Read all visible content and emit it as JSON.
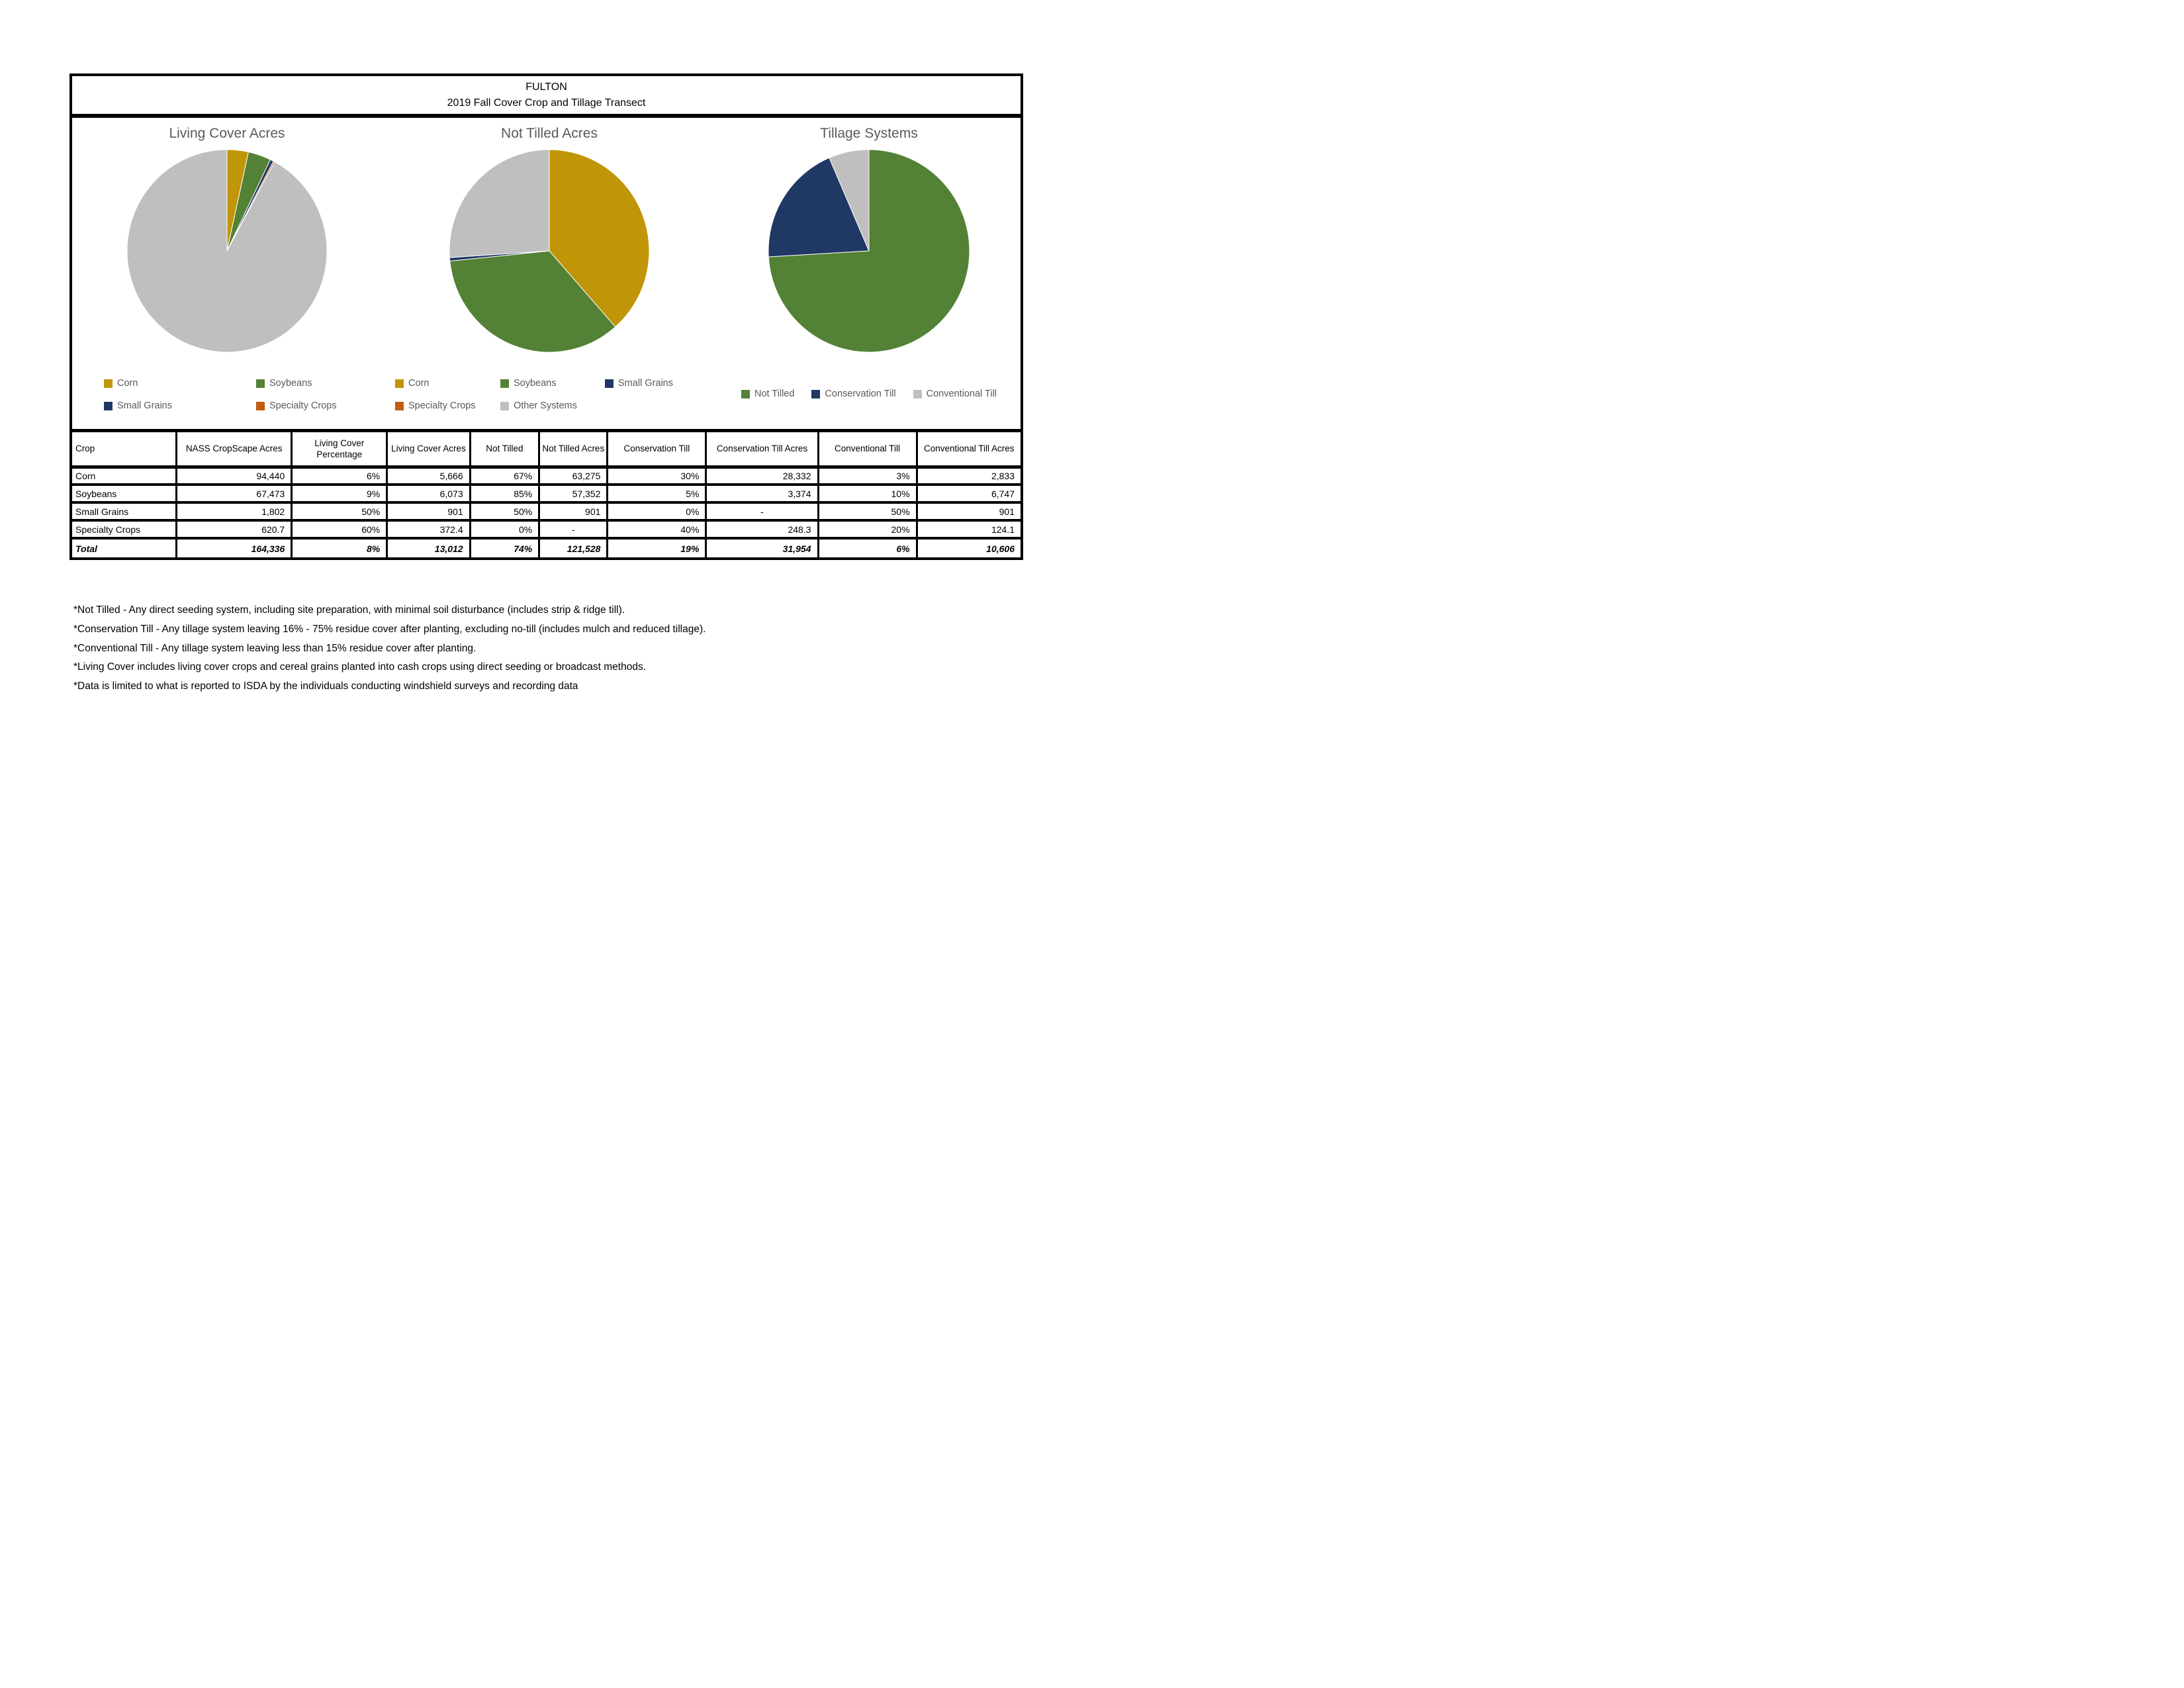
{
  "header": {
    "title_line1": "FULTON",
    "title_line2": "2019 Fall Cover Crop and Tillage Transect"
  },
  "colors": {
    "corn_gold": "#C09507",
    "soybeans_green": "#538135",
    "small_grains_navy": "#1F3864",
    "specialty_orange": "#C55A11",
    "other_gray": "#BFBFBF",
    "chart_text_gray": "#595959",
    "border_black": "#000000"
  },
  "chart_data": [
    {
      "type": "pie",
      "title": "Living Cover Acres",
      "legend_position": "bottom",
      "slices": [
        {
          "label": "Corn",
          "value": 5666,
          "color": "#C09507",
          "in_legend": true
        },
        {
          "label": "Soybeans",
          "value": 6073,
          "color": "#538135",
          "in_legend": true
        },
        {
          "label": "Small Grains",
          "value": 901,
          "color": "#1F3864",
          "in_legend": true
        },
        {
          "label": "Specialty Crops",
          "value": 372.4,
          "color": "#C55A11",
          "in_legend": true
        },
        {
          "label": "",
          "value": 151324,
          "color": "#BFBFBF",
          "in_legend": false
        }
      ],
      "legend_rows": [
        [
          "Corn",
          "Soybeans"
        ],
        [
          "Small Grains",
          "Specialty Crops"
        ]
      ]
    },
    {
      "type": "pie",
      "title": "Not Tilled Acres",
      "legend_position": "bottom",
      "slices": [
        {
          "label": "Corn",
          "value": 63275,
          "color": "#C09507",
          "in_legend": true
        },
        {
          "label": "Soybeans",
          "value": 57352,
          "color": "#538135",
          "in_legend": true
        },
        {
          "label": "Small Grains",
          "value": 901,
          "color": "#1F3864",
          "in_legend": true
        },
        {
          "label": "Specialty Crops",
          "value": 0,
          "color": "#C55A11",
          "in_legend": true
        },
        {
          "label": "Other Systems",
          "value": 42808,
          "color": "#BFBFBF",
          "in_legend": true
        }
      ],
      "legend_rows": [
        [
          "Corn",
          "Soybeans",
          "Small Grains"
        ],
        [
          "Specialty Crops",
          "Other Systems"
        ]
      ]
    },
    {
      "type": "pie",
      "title": "Tillage Systems",
      "legend_position": "bottom",
      "slices": [
        {
          "label": "Not Tilled",
          "value": 121528,
          "color": "#538135",
          "in_legend": true
        },
        {
          "label": "Conservation Till",
          "value": 31954,
          "color": "#1F3864",
          "in_legend": true
        },
        {
          "label": "Conventional Till",
          "value": 10606,
          "color": "#BFBFBF",
          "in_legend": true
        }
      ],
      "legend_rows": [
        [
          "Not Tilled",
          "Conservation Till",
          "Conventional Till"
        ]
      ]
    }
  ],
  "table": {
    "columns": [
      "Crop",
      "NASS CropScape Acres",
      "Living Cover Percentage",
      "Living Cover Acres",
      "Not Tilled",
      "Not Tilled Acres",
      "Conservation Till",
      "Conservation Till Acres",
      "Conventional Till",
      "Conventional Till Acres"
    ],
    "rows": [
      [
        "Corn",
        "94,440",
        "6%",
        "5,666",
        "67%",
        "63,275",
        "30%",
        "28,332",
        "3%",
        "2,833"
      ],
      [
        "Soybeans",
        "67,473",
        "9%",
        "6,073",
        "85%",
        "57,352",
        "5%",
        "3,374",
        "10%",
        "6,747"
      ],
      [
        "Small Grains",
        "1,802",
        "50%",
        "901",
        "50%",
        "901",
        "0%",
        "-",
        "50%",
        "901"
      ],
      [
        "Specialty Crops",
        "620.7",
        "60%",
        "372.4",
        "0%",
        "-",
        "40%",
        "248.3",
        "20%",
        "124.1"
      ]
    ],
    "total_row": [
      "Total",
      "164,336",
      "8%",
      "13,012",
      "74%",
      "121,528",
      "19%",
      "31,954",
      "6%",
      "10,606"
    ]
  },
  "footnotes": [
    "*Not Tilled - Any direct seeding system, including site preparation, with minimal soil disturbance (includes strip & ridge till).",
    "*Conservation Till - Any tillage system leaving 16% - 75% residue cover after planting, excluding no-till (includes mulch and reduced tillage).",
    "*Conventional Till - Any tillage system leaving less than 15% residue cover after planting.",
    "*Living Cover includes living cover crops and cereal grains planted into cash crops using direct seeding or broadcast methods.",
    "*Data is limited to what is reported to ISDA by the individuals conducting windshield surveys and recording data"
  ]
}
